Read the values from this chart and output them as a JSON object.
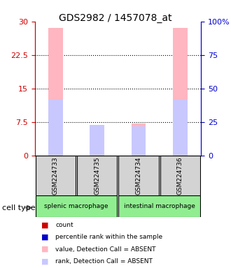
{
  "title": "GDS2982 / 1457078_at",
  "samples": [
    "GSM224733",
    "GSM224735",
    "GSM224734",
    "GSM224736"
  ],
  "cell_types": [
    {
      "label": "splenic macrophage",
      "samples": [
        0,
        1
      ],
      "color": "#90EE90"
    },
    {
      "label": "intestinal macrophage",
      "samples": [
        2,
        3
      ],
      "color": "#90EE90"
    }
  ],
  "bar_values": [
    28.5,
    6.8,
    7.2,
    28.5
  ],
  "rank_values": [
    12.5,
    6.8,
    6.5,
    12.5
  ],
  "bar_colors_absent": "#FFB6C1",
  "rank_colors_absent": "#C8C8FF",
  "bar_width": 0.4,
  "ylim_left": [
    0,
    30
  ],
  "ylim_right": [
    0,
    100
  ],
  "yticks_left": [
    0,
    7.5,
    15,
    22.5,
    30
  ],
  "yticks_right": [
    0,
    25,
    50,
    75,
    100
  ],
  "ytick_labels_left": [
    "0",
    "7.5",
    "15",
    "22.5",
    "30"
  ],
  "ytick_labels_right": [
    "0",
    "25",
    "50",
    "75",
    "100%"
  ],
  "left_axis_color": "#CC0000",
  "right_axis_color": "#0000CC",
  "grid_color": "black",
  "legend_items": [
    {
      "color": "#CC0000",
      "label": "count"
    },
    {
      "color": "#0000CC",
      "label": "percentile rank within the sample"
    },
    {
      "color": "#FFB6C1",
      "label": "value, Detection Call = ABSENT"
    },
    {
      "color": "#C8C8FF",
      "label": "rank, Detection Call = ABSENT"
    }
  ],
  "xlabel": "cell type"
}
